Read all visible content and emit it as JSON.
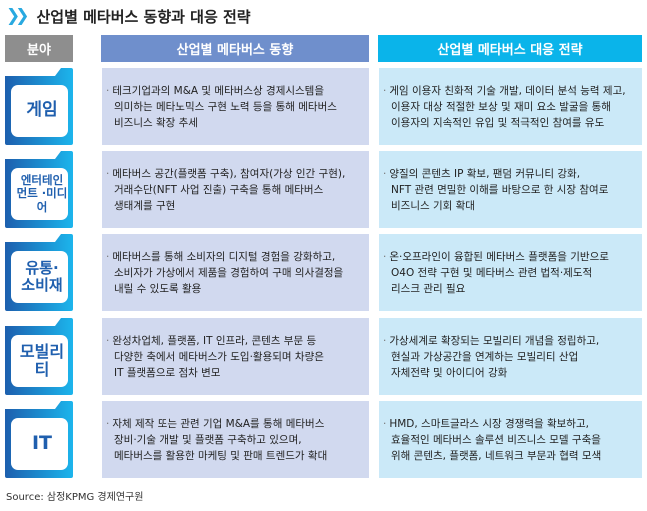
{
  "title": "산업별 메타버스 동향과 대응 전략",
  "headers": {
    "field": "분야",
    "trend": "산업별 메타버스 동향",
    "strategy": "산업별 메타버스 대응 전략"
  },
  "colors": {
    "field_header": "#8e8e8e",
    "trend_header": "#6f8fcc",
    "strategy_header": "#0ab4ea",
    "trend_cell": "#d1d9ef",
    "strategy_cell": "#cbe9f8",
    "folder_dark": "#1d5fae",
    "folder_light": "#1cb5ec"
  },
  "rows": [
    {
      "field": "게임",
      "trend": [
        "테크기업과의 M&A 및 메타버스상 경제시스템을",
        "의미하는 메타노믹스 구현 노력 등을 통해 메타버스",
        "비즈니스 확장 추세"
      ],
      "strategy": [
        "게임 이용자 친화적 기술 개발, 데이터 분석 능력 제고,",
        "이용자 대상 적절한 보상 및 재미 요소 발굴을 통해",
        "이용자의 지속적인 유입 및 적극적인 참여를 유도"
      ]
    },
    {
      "field": "엔터테인먼트 ·미디어",
      "trend": [
        "메타버스 공간(플랫폼 구축), 참여자(가상 인간 구현),",
        "거래수단(NFT 사업 진출) 구축을 통해 메타버스",
        "생태계를 구현"
      ],
      "strategy": [
        "양질의 콘텐츠 IP 확보, 팬덤 커뮤니티 강화,",
        "NFT 관련 면밀한 이해를 바탕으로 한 시장 참여로",
        "비즈니스 기회 확대"
      ]
    },
    {
      "field": "유통· 소비재",
      "trend": [
        "메타버스를 통해 소비자의 디지털 경험을 강화하고,",
        "소비자가 가상에서 제품을 경험하여 구매 의사결정을",
        "내릴 수 있도록 활용"
      ],
      "strategy": [
        "온·오프라인이 융합된 메타버스 플랫폼을 기반으로",
        "O4O 전략 구현 및 메타버스 관련 법적·제도적",
        "리스크 관리 필요"
      ]
    },
    {
      "field": "모빌리티",
      "trend": [
        "완성차업체, 플랫폼, IT 인프라, 콘텐츠 부문 등",
        "다양한 축에서 메타버스가 도입·활용되며 차량은",
        "IT 플랫폼으로 점차 변모"
      ],
      "strategy": [
        "가상세계로 확장되는 모빌리티 개념을 정립하고,",
        "현실과 가상공간을 연계하는 모빌리티 산업",
        "자체전략 및 아이디어 강화"
      ]
    },
    {
      "field": "IT",
      "trend": [
        "자체 제작 또는 관련 기업 M&A를 통해 메타버스",
        "장비·기술 개발 및 플랫폼 구축하고 있으며,",
        "메타버스를 활용한 마케팅 및 판매 트렌드가 확대"
      ],
      "strategy": [
        "HMD, 스마트글라스 시장 경쟁력을 확보하고,",
        "효율적인 메타버스 솔루션 비즈니스 모델 구축을",
        "위해 콘텐츠, 플랫폼, 네트워크 부문과 협력 모색"
      ]
    }
  ],
  "source": "Source: 삼정KPMG 경제연구원"
}
